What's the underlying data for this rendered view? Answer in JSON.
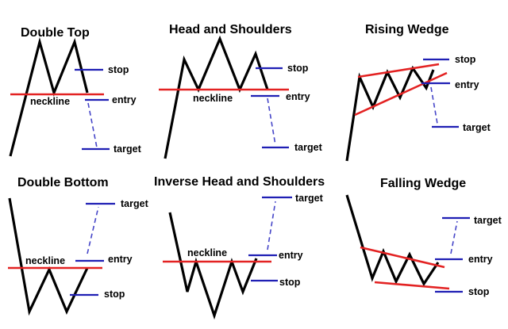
{
  "colors": {
    "price": "#000000",
    "neckline": "#e32222",
    "level": "#1f1fb4",
    "projection": "#4545c8"
  },
  "labels": {
    "stop": "stop",
    "entry": "entry",
    "target": "target",
    "neckline": "neckline"
  },
  "patterns": [
    {
      "id": "double-top",
      "title": "Double Top"
    },
    {
      "id": "head-and-shoulders",
      "title": "Head and Shoulders"
    },
    {
      "id": "rising-wedge",
      "title": "Rising Wedge"
    },
    {
      "id": "double-bottom",
      "title": "Double Bottom"
    },
    {
      "id": "inverse-head-and-shoulders",
      "title": "Inverse Head and Shoulders"
    },
    {
      "id": "falling-wedge",
      "title": "Falling Wedge"
    }
  ]
}
